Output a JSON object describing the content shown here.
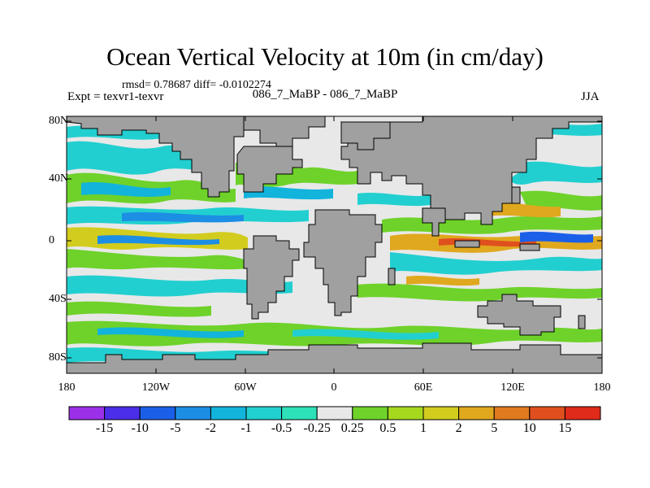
{
  "title": "Ocean Vertical Velocity at 10m (in cm/day)",
  "stats_line": "rmsd= 0.78687  diff= -0.0102274",
  "experiment": "Expt = texvr1-texvr",
  "runs": "086_7_MaBP - 086_7_MaBP",
  "season": "JJA",
  "lat_labels": [
    "80N",
    "40N",
    "0",
    "40S",
    "80S"
  ],
  "lon_labels": [
    "180",
    "120W",
    "60W",
    "0",
    "60E",
    "120E",
    "180"
  ],
  "colorbar": {
    "levels": [
      "-15",
      "-10",
      "-5",
      "-2",
      "-1",
      "-0.5",
      "-0.25",
      "0.25",
      "0.5",
      "1",
      "2",
      "5",
      "10",
      "15"
    ],
    "colors": [
      "#9b30e8",
      "#4a2ee8",
      "#1b5fe8",
      "#1c8ee4",
      "#12b4dc",
      "#22cfd0",
      "#2de0b8",
      "#e8e8e8",
      "#6ed22a",
      "#a6d81e",
      "#d2cc1e",
      "#e0a81e",
      "#e07a1e",
      "#e0501e",
      "#e02a1a"
    ]
  },
  "land_color": "#a0a0a0"
}
